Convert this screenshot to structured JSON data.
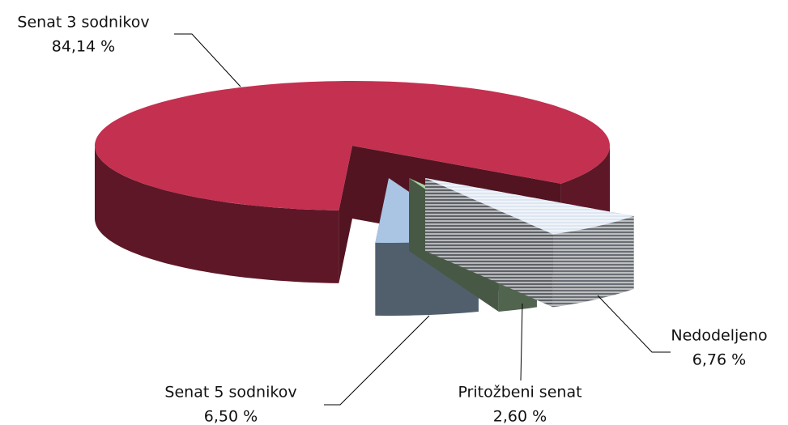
{
  "chart_data": {
    "type": "pie3d",
    "categories": [
      "Senat 3 sodnikov",
      "Nedodeljeno",
      "Pritožbeni senat",
      "Senat 5 sodnikov"
    ],
    "values": [
      84.14,
      6.76,
      2.6,
      6.5
    ],
    "value_labels": [
      "84,14 %",
      "6,76 %",
      "2,60 %",
      "6,50 %"
    ],
    "colors": [
      "#c4304f",
      "#dde6f2",
      "#a9d3a2",
      "#a9c5e3"
    ],
    "striped": [
      false,
      true,
      false,
      false
    ]
  }
}
